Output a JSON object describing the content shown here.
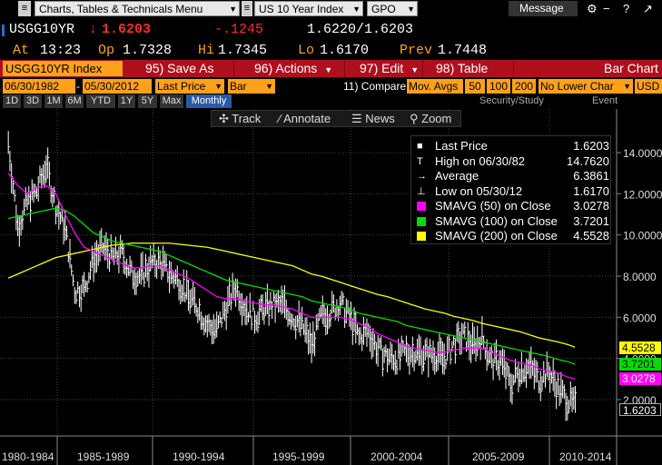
{
  "topbar": {
    "charts_menu": "Charts, Tables & Technicals Menu",
    "security_menu": "US 10 Year Index",
    "page_menu": "GPO",
    "message": "Message",
    "win_controls": [
      "⚙",
      "−",
      "?",
      "↗"
    ]
  },
  "quote": {
    "ticker": "USGG10YR",
    "arrow": "↓",
    "last": "1.6203",
    "change": "-.1245",
    "bid_ask": "1.6220/1.6203",
    "at_label": "At",
    "time": "13:23",
    "op_label": "Op",
    "open": "1.7328",
    "hi_label": "Hi",
    "high": "1.7345",
    "lo_label": "Lo",
    "low": "1.6170",
    "prev_label": "Prev",
    "prev": "1.7448"
  },
  "actionbar": {
    "ticker_field": "USGG10YR Index",
    "save_as": "95) Save As",
    "actions": "96) Actions",
    "edit": "97) Edit",
    "table": "98) Table",
    "bar_chart": "Bar Chart"
  },
  "inputs": {
    "start_date": "06/30/1982",
    "end_date": "05/30/2012",
    "field": "Last Price",
    "chart_type": "Bar",
    "compare": "11) Compare",
    "mov_avgs": "Mov. Avgs",
    "avg_periods": [
      "50",
      "100",
      "200"
    ],
    "lower_chart": "No Lower Char",
    "currency": "USD"
  },
  "periods": {
    "items": [
      "1D",
      "3D",
      "1M",
      "6M",
      "YTD",
      "1Y",
      "5Y",
      "Max",
      "Monthly"
    ],
    "selected": "Monthly",
    "security_study": "Security/Study",
    "event": "Event"
  },
  "tools": {
    "track": "Track",
    "annotate": "Annotate",
    "news": "News",
    "zoom": "Zoom"
  },
  "legend": {
    "rows": [
      {
        "label": "Last Price",
        "value": "1.6203",
        "icon": "last-price-square-icon",
        "color": "#ffffff"
      },
      {
        "label": "High on 06/30/82",
        "value": "14.7620",
        "icon": "high-marker-icon",
        "color": "#ffffff"
      },
      {
        "label": "Average",
        "value": "6.3861",
        "icon": "average-marker-icon",
        "color": "#ffffff"
      },
      {
        "label": "Low on 05/30/12",
        "value": "1.6170",
        "icon": "low-marker-icon",
        "color": "#ffffff"
      },
      {
        "label": "SMAVG (50) on Close",
        "value": "3.0278",
        "icon": "magenta-swatch",
        "color": "#ff00ff"
      },
      {
        "label": "SMAVG (100) on Close",
        "value": "3.7201",
        "icon": "green-swatch",
        "color": "#00dd00"
      },
      {
        "label": "SMAVG (200) on Close",
        "value": "4.5528",
        "icon": "yellow-swatch",
        "color": "#ffff00"
      }
    ]
  },
  "axis_tags": {
    "sma200": "4.5528",
    "sma100": "3.7201",
    "sma50": "3.0278",
    "last": "1.6203"
  },
  "chart_data": {
    "type": "line",
    "title": "",
    "xlabel": "",
    "ylabel": "",
    "ylim": [
      1.5,
      15
    ],
    "yticks": [
      "14.0000",
      "12.0000",
      "10.0000",
      "8.0000",
      "6.0000",
      "4.0000",
      "2.0000"
    ],
    "xticks": [
      "1980-1984",
      "1985-1989",
      "1990-1994",
      "1995-1999",
      "2000-2004",
      "2005-2009",
      "2010-2014"
    ],
    "x": [
      1982.5,
      1983,
      1983.5,
      1984,
      1984.5,
      1985,
      1985.5,
      1986,
      1986.5,
      1987,
      1987.5,
      1988,
      1988.5,
      1989,
      1989.5,
      1990,
      1990.5,
      1991,
      1991.5,
      1992,
      1992.5,
      1993,
      1993.5,
      1994,
      1994.5,
      1995,
      1995.5,
      1996,
      1996.5,
      1997,
      1997.5,
      1998,
      1998.5,
      1999,
      1999.5,
      2000,
      2000.5,
      2001,
      2001.5,
      2002,
      2002.5,
      2003,
      2003.5,
      2004,
      2004.5,
      2005,
      2005.5,
      2006,
      2006.5,
      2007,
      2007.5,
      2008,
      2008.5,
      2009,
      2009.5,
      2010,
      2010.5,
      2011,
      2011.5,
      2012,
      2012.4
    ],
    "series": [
      {
        "name": "Last Price",
        "color": "#ffffff",
        "values": [
          14.5,
          10.4,
          11.6,
          12.1,
          13.4,
          11.4,
          10.3,
          7.3,
          7.4,
          8.8,
          9.4,
          8.9,
          9.1,
          8.1,
          8.0,
          8.6,
          8.7,
          8.1,
          7.8,
          7.0,
          6.5,
          5.6,
          5.4,
          6.5,
          7.5,
          6.5,
          6.0,
          6.4,
          6.6,
          6.6,
          6.0,
          5.6,
          4.6,
          6.0,
          6.3,
          6.7,
          6.0,
          5.0,
          5.3,
          4.4,
          4.1,
          4.0,
          4.3,
          4.3,
          4.2,
          4.2,
          4.0,
          4.7,
          5.1,
          4.6,
          5.0,
          3.8,
          3.9,
          2.7,
          3.5,
          3.6,
          3.0,
          3.4,
          2.5,
          2.0,
          1.62
        ]
      },
      {
        "name": "SMAVG (50) on Close",
        "color": "#ff00ff",
        "values": [
          13.0,
          12.4,
          12.0,
          12.3,
          12.4,
          12.0,
          11.0,
          10.1,
          9.4,
          9.2,
          9.0,
          8.8,
          8.6,
          8.4,
          8.4,
          8.5,
          8.5,
          8.3,
          8.1,
          7.9,
          7.6,
          7.3,
          7.0,
          6.9,
          6.9,
          6.8,
          6.7,
          6.6,
          6.6,
          6.5,
          6.4,
          6.2,
          6.0,
          6.0,
          6.0,
          6.0,
          5.9,
          5.7,
          5.5,
          5.2,
          5.0,
          4.8,
          4.6,
          4.5,
          4.4,
          4.3,
          4.3,
          4.4,
          4.5,
          4.5,
          4.5,
          4.3,
          4.1,
          3.9,
          3.8,
          3.7,
          3.5,
          3.4,
          3.3,
          3.1,
          3.0
        ]
      },
      {
        "name": "SMAVG (100) on Close",
        "color": "#00dd00",
        "values": [
          10.8,
          10.9,
          11.0,
          11.1,
          11.2,
          11.3,
          11.2,
          10.9,
          10.5,
          10.1,
          9.9,
          9.7,
          9.6,
          9.5,
          9.4,
          9.3,
          9.2,
          9.0,
          8.8,
          8.6,
          8.4,
          8.2,
          8.0,
          7.8,
          7.7,
          7.6,
          7.5,
          7.4,
          7.3,
          7.2,
          7.1,
          7.0,
          6.8,
          6.7,
          6.6,
          6.5,
          6.4,
          6.2,
          6.1,
          6.0,
          5.9,
          5.8,
          5.6,
          5.5,
          5.4,
          5.3,
          5.2,
          5.1,
          5.0,
          4.9,
          4.8,
          4.7,
          4.6,
          4.5,
          4.4,
          4.3,
          4.2,
          4.1,
          3.95,
          3.85,
          3.72
        ]
      },
      {
        "name": "SMAVG (200) on Close",
        "color": "#ffff00",
        "values": [
          7.9,
          8.1,
          8.3,
          8.5,
          8.7,
          8.9,
          9.0,
          9.1,
          9.2,
          9.3,
          9.4,
          9.5,
          9.55,
          9.6,
          9.6,
          9.6,
          9.6,
          9.6,
          9.55,
          9.5,
          9.45,
          9.4,
          9.3,
          9.2,
          9.1,
          9.0,
          8.9,
          8.8,
          8.7,
          8.6,
          8.5,
          8.3,
          8.1,
          8.0,
          7.85,
          7.7,
          7.55,
          7.4,
          7.25,
          7.1,
          7.0,
          6.85,
          6.7,
          6.55,
          6.4,
          6.3,
          6.2,
          6.05,
          5.95,
          5.85,
          5.7,
          5.6,
          5.5,
          5.4,
          5.3,
          5.15,
          5.0,
          4.9,
          4.8,
          4.68,
          4.55
        ]
      }
    ],
    "grid": true,
    "legend_position": "top-right"
  }
}
